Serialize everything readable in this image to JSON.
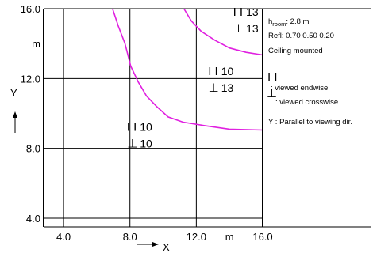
{
  "chart_data": {
    "type": "line",
    "xlim": [
      2.8,
      16.0
    ],
    "ylim": [
      3.5,
      16.0
    ],
    "x_ticks": [
      {
        "value": 4.0,
        "label": "4.0"
      },
      {
        "value": 8.0,
        "label": "8.0"
      },
      {
        "value": 12.0,
        "label": "12.0"
      },
      {
        "value": 14.0,
        "label": "m"
      },
      {
        "value": 16.0,
        "label": "16.0"
      }
    ],
    "y_ticks": [
      {
        "value": 4.0,
        "label": "4.0"
      },
      {
        "value": 8.0,
        "label": "8.0"
      },
      {
        "value": 12.0,
        "label": "12.0"
      },
      {
        "value": 14.0,
        "label": "m"
      },
      {
        "value": 16.0,
        "label": "16.0"
      }
    ],
    "grid_x": [
      4.0,
      8.0,
      12.0
    ],
    "grid_y": [
      4.0,
      8.0,
      12.0
    ],
    "xlabel": "X",
    "ylabel": "Y",
    "curve_color": "#e020e0",
    "series": [
      {
        "points": [
          [
            6.95,
            16.0
          ],
          [
            7.3,
            15.0
          ],
          [
            7.7,
            14.0
          ],
          [
            8.05,
            12.7
          ],
          [
            8.5,
            11.8
          ],
          [
            9.0,
            11.0
          ],
          [
            9.6,
            10.4
          ],
          [
            10.3,
            9.8
          ],
          [
            11.2,
            9.5
          ],
          [
            12.5,
            9.3
          ],
          [
            14.0,
            9.1
          ],
          [
            16.0,
            9.05
          ]
        ]
      },
      {
        "points": [
          [
            11.25,
            16.0
          ],
          [
            11.7,
            15.3
          ],
          [
            12.3,
            14.7
          ],
          [
            13.1,
            14.2
          ],
          [
            14.0,
            13.75
          ],
          [
            15.0,
            13.5
          ],
          [
            16.0,
            13.35
          ]
        ]
      }
    ],
    "zones": [
      {
        "x": 15.0,
        "y": 15.6,
        "endwise": "13",
        "crosswise": "13"
      },
      {
        "x": 13.5,
        "y": 12.2,
        "endwise": "10",
        "crosswise": "13"
      },
      {
        "x": 8.6,
        "y": 9.0,
        "endwise": "10",
        "crosswise": "10"
      }
    ],
    "endwise_symbol": "I I",
    "crosswise_symbol": "⊥"
  },
  "side_panel": {
    "room_height_label": "h",
    "room_height_sub": "room",
    "room_height_value": ": 2.8 m",
    "reflectances": "Refl: 0.70 0.50 0.20",
    "mounting": "Ceiling mounted",
    "endwise_legend": ": viewed endwise",
    "crosswise_legend": ": viewed crosswise",
    "y_note": "Y   : Parallel to viewing dir."
  }
}
